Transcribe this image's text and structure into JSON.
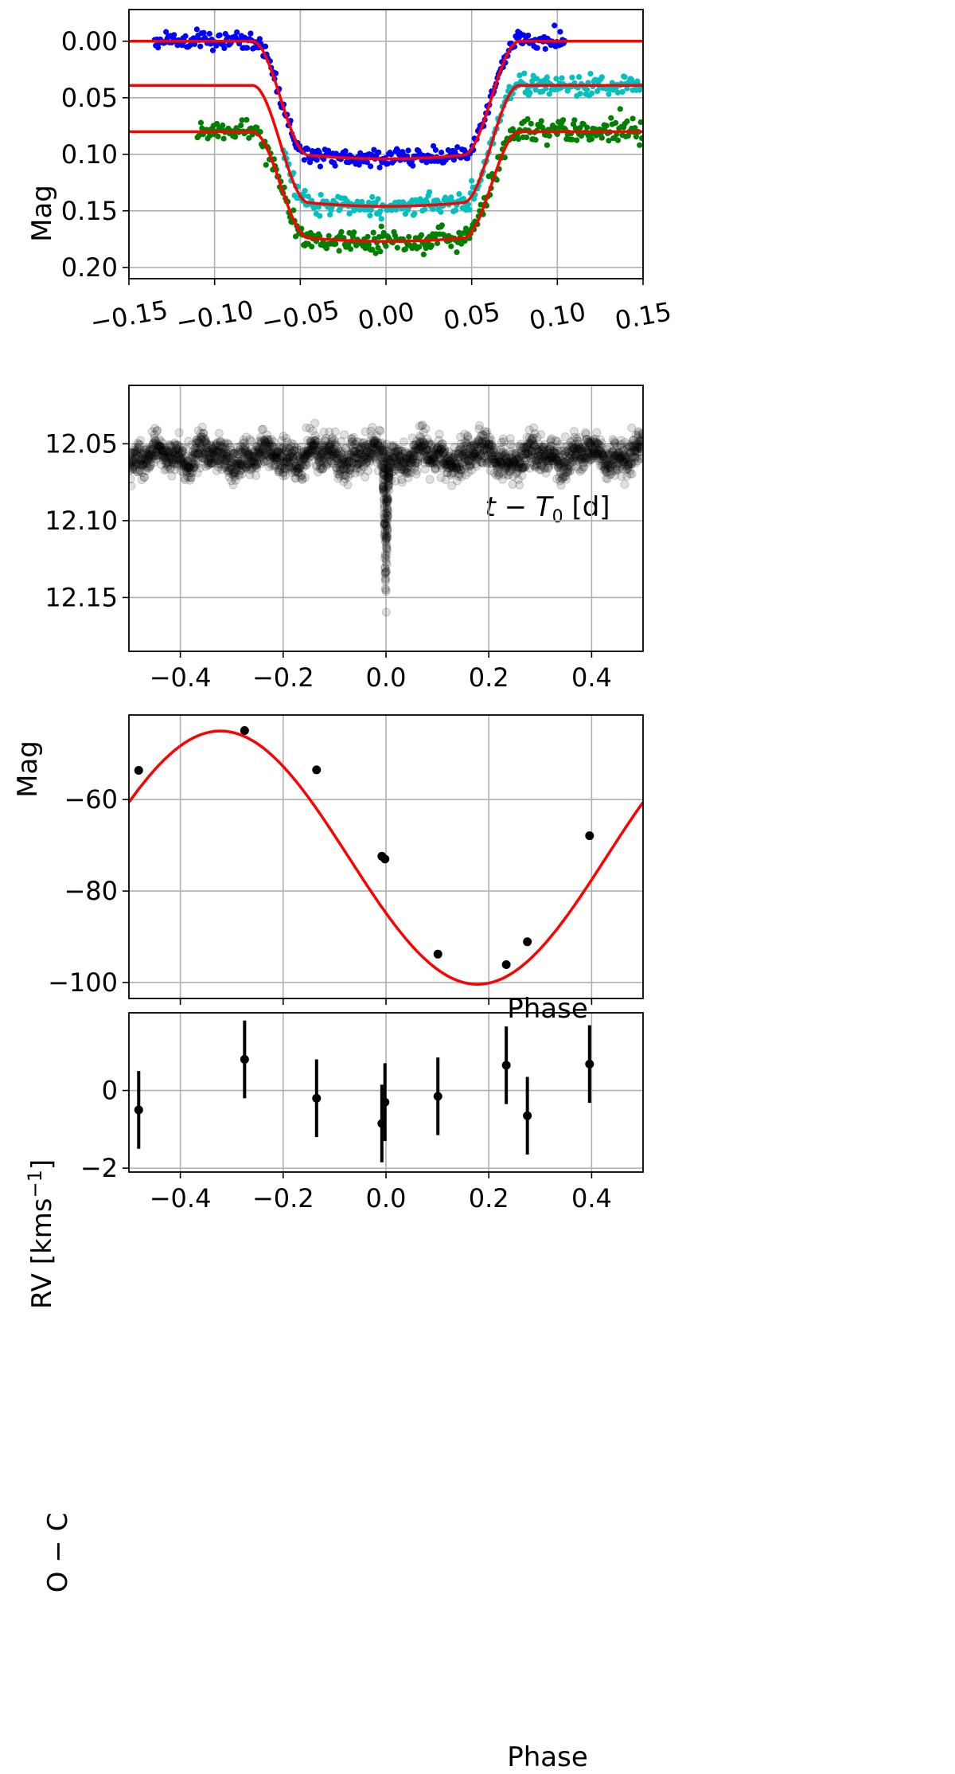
{
  "chart_data": [
    {
      "type": "line",
      "panel": "transit-light-curves",
      "xlabel": "t − T",
      "xlabel_sub": "0",
      "xlabel_unit": " [d]",
      "ylabel": "Mag",
      "xlim": [
        -0.15,
        0.15
      ],
      "ylim": [
        0.21,
        -0.028
      ],
      "y_inverted": true,
      "grid": true,
      "xticks": [
        -0.15,
        -0.1,
        -0.05,
        0.0,
        0.05,
        0.1,
        0.15
      ],
      "xtick_labels": [
        "−0.15",
        "−0.10",
        "−0.05",
        "0.00",
        "0.05",
        "0.10",
        "0.15"
      ],
      "xtick_rotation_deg": -10,
      "yticks": [
        0.0,
        0.05,
        0.1,
        0.15,
        0.2
      ],
      "ytick_labels": [
        "0.00",
        "0.05",
        "0.10",
        "0.15",
        "0.20"
      ],
      "series": [
        {
          "color": "#0000ff",
          "kind": "scatter",
          "x_range": [
            -0.135,
            0.105
          ],
          "baseline": 0.0,
          "depth": 0.103,
          "noise": 0.004
        },
        {
          "color": "#00c0c0",
          "kind": "scatter",
          "x_range": [
            -0.06,
            0.15
          ],
          "baseline": 0.039,
          "depth": 0.107,
          "noise": 0.004
        },
        {
          "color": "#008000",
          "kind": "scatter",
          "x_range": [
            -0.11,
            0.15
          ],
          "baseline": 0.08,
          "depth": 0.097,
          "noise": 0.005
        },
        {
          "color": "#ff0000",
          "kind": "model",
          "baseline": 0.0,
          "depth": 0.104,
          "x_range": [
            -0.15,
            0.15
          ]
        },
        {
          "color": "#ff0000",
          "kind": "model",
          "baseline": 0.039,
          "depth": 0.107,
          "x_range": [
            -0.15,
            0.15
          ]
        },
        {
          "color": "#ff0000",
          "kind": "model",
          "baseline": 0.08,
          "depth": 0.097,
          "x_range": [
            -0.15,
            0.15
          ]
        }
      ],
      "model_shape": {
        "t_first_contact": -0.078,
        "t_full_start": -0.045,
        "t_full_end": 0.045,
        "t_last_contact": 0.078
      }
    },
    {
      "type": "scatter",
      "panel": "phased-photometry",
      "xlabel": "Phase",
      "ylabel": "Mag",
      "xlim": [
        -0.5,
        0.5
      ],
      "ylim": [
        12.185,
        12.012
      ],
      "y_inverted": true,
      "grid": true,
      "xticks": [
        -0.4,
        -0.2,
        0.0,
        0.2,
        0.4
      ],
      "xtick_labels": [
        "−0.4",
        "−0.2",
        "0.0",
        "0.2",
        "0.4"
      ],
      "yticks": [
        12.05,
        12.1,
        12.15
      ],
      "ytick_labels": [
        "12.05",
        "12.10",
        "12.15"
      ],
      "series": [
        {
          "color": "#000000",
          "alpha": 0.12,
          "baseline": 12.058,
          "scatter": 0.01,
          "dip_center": 0.0,
          "dip_depth": 12.17,
          "dip_halfwidth": 0.006
        }
      ]
    },
    {
      "type": "line",
      "panel": "radial-velocity",
      "xlabel": "",
      "ylabel": "RV [kms",
      "ylabel_sup": "−1",
      "ylabel_close": "]",
      "xlim": [
        -0.5,
        0.5
      ],
      "ylim": [
        -103.5,
        -41.5
      ],
      "grid": true,
      "xticks": [
        -0.4,
        -0.2,
        0.0,
        0.2,
        0.4
      ],
      "yticks": [
        -60,
        -80,
        -100
      ],
      "ytick_labels": [
        "−60",
        "−80",
        "−100"
      ],
      "model": {
        "color": "#ff0000",
        "gamma": -72.7,
        "K": 27.7,
        "min_phase": 0.178
      },
      "points": {
        "x": [
          -0.481,
          -0.275,
          -0.135,
          -0.008,
          -0.002,
          0.101,
          0.234,
          0.275,
          0.396
        ],
        "y": [
          -53.6,
          -44.9,
          -53.5,
          -72.4,
          -73.0,
          -93.8,
          -96.1,
          -91.1,
          -67.9
        ]
      }
    },
    {
      "type": "scatter",
      "panel": "residuals",
      "xlabel": "Phase",
      "ylabel": "O − C",
      "xlim": [
        -0.5,
        0.5
      ],
      "ylim": [
        -2.1,
        2.0
      ],
      "grid": true,
      "xticks": [
        -0.4,
        -0.2,
        0.0,
        0.2,
        0.4
      ],
      "xtick_labels": [
        "−0.4",
        "−0.2",
        "0.0",
        "0.2",
        "0.4"
      ],
      "yticks": [
        0,
        -2
      ],
      "ytick_labels": [
        "0",
        "−2"
      ],
      "points": {
        "x": [
          -0.481,
          -0.275,
          -0.135,
          -0.008,
          -0.002,
          0.101,
          0.234,
          0.275,
          0.396
        ],
        "y": [
          -0.5,
          0.8,
          -0.2,
          -0.85,
          -0.3,
          -0.15,
          0.65,
          -0.65,
          0.68
        ],
        "err": [
          1.0,
          1.0,
          1.0,
          1.0,
          1.0,
          1.0,
          1.0,
          1.0,
          1.0
        ]
      }
    }
  ]
}
